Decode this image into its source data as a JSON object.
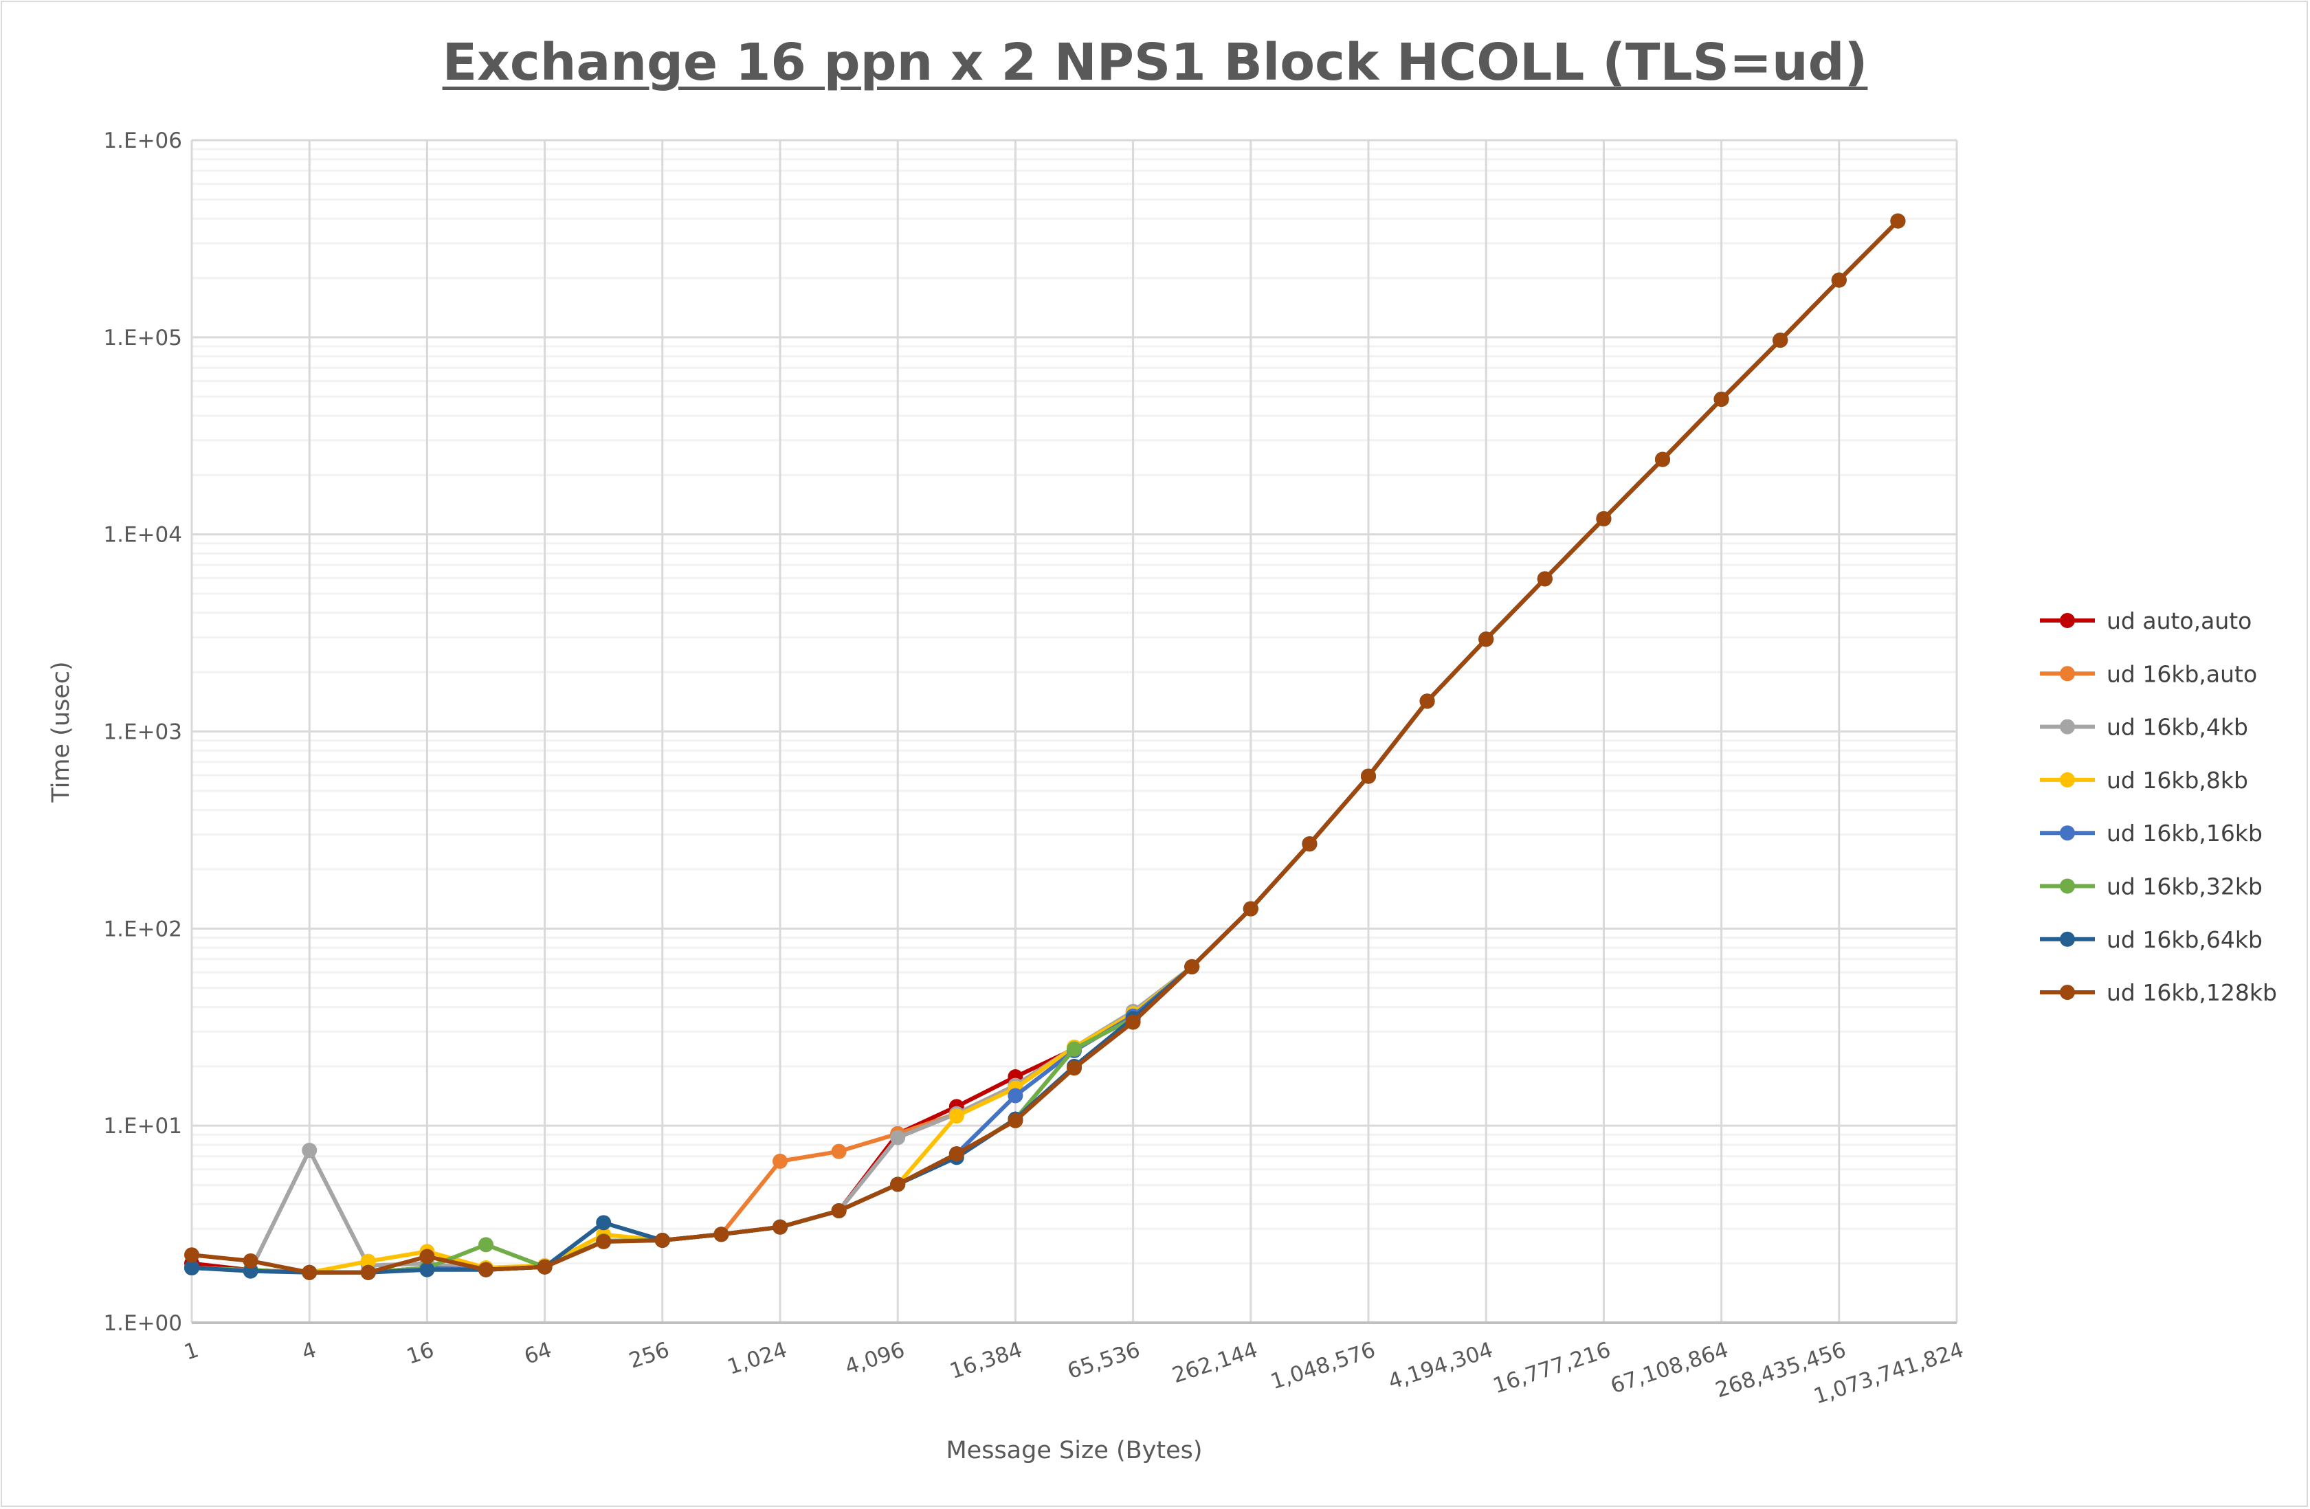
{
  "chart_data": {
    "type": "line",
    "title": "Exchange 16 ppn x 2 NPS1 Block HCOLL (TLS=ud)",
    "xlabel": "Message Size (Bytes)",
    "ylabel": "Time (usec)",
    "x_scale": "log2",
    "y_scale": "log10",
    "ylim": [
      1,
      1000000
    ],
    "xlim": [
      1,
      1073741824
    ],
    "grid": true,
    "legend_position": "right",
    "x_tick_labels": [
      "1",
      "4",
      "16",
      "64",
      "256",
      "1,024",
      "4,096",
      "16,384",
      "65,536",
      "262,144",
      "1,048,576",
      "4,194,304",
      "16,777,216",
      "67,108,864",
      "268,435,456",
      "1,073,741,824"
    ],
    "y_tick_labels": [
      "1.E+00",
      "1.E+01",
      "1.E+02",
      "1.E+03",
      "1.E+04",
      "1.E+05",
      "1.E+06"
    ],
    "x": [
      1,
      2,
      4,
      8,
      16,
      32,
      64,
      128,
      256,
      512,
      1024,
      2048,
      4096,
      8192,
      16384,
      32768,
      65536,
      131072,
      262144,
      524288,
      1048576,
      2097152,
      4194304,
      8388608,
      16777216,
      33554432,
      67108864,
      134217728,
      268435456,
      536870912
    ],
    "series": [
      {
        "name": "ud auto,auto",
        "color": "#C00000",
        "values": [
          2.0,
          1.85,
          1.8,
          1.8,
          1.9,
          1.86,
          1.92,
          2.6,
          2.62,
          2.81,
          3.06,
          3.7,
          9.1,
          12.5,
          17.7,
          24.5,
          36,
          64,
          126,
          269,
          593,
          1425,
          2940,
          5950,
          12000,
          24000,
          48500,
          96600,
          195000,
          389000
        ]
      },
      {
        "name": "ud 16kb,auto",
        "color": "#ED7D31",
        "values": [
          1.9,
          1.85,
          1.8,
          1.8,
          1.9,
          1.86,
          1.92,
          2.6,
          2.62,
          2.81,
          6.6,
          7.4,
          9.1,
          11.5,
          16,
          25,
          37,
          64,
          126,
          269,
          593,
          1425,
          2940,
          5950,
          12000,
          24000,
          48500,
          96600,
          195000,
          389000
        ]
      },
      {
        "name": "ud 16kb,4kb",
        "color": "#A5A5A5",
        "values": [
          1.9,
          1.85,
          7.5,
          1.95,
          2.0,
          1.86,
          1.92,
          2.6,
          2.62,
          2.81,
          3.06,
          3.7,
          8.7,
          11.5,
          16,
          25,
          38,
          64,
          126,
          269,
          593,
          1425,
          2940,
          5950,
          12000,
          24000,
          48500,
          96600,
          195000,
          389000
        ]
      },
      {
        "name": "ud 16kb,8kb",
        "color": "#FFC000",
        "values": [
          1.9,
          1.85,
          1.8,
          2.05,
          2.3,
          1.9,
          1.95,
          2.8,
          2.62,
          2.81,
          3.06,
          3.7,
          5.04,
          11.2,
          15.5,
          25,
          37,
          64,
          126,
          269,
          593,
          1425,
          2940,
          5950,
          12000,
          24000,
          48500,
          96600,
          195000,
          389000
        ]
      },
      {
        "name": "ud 16kb,16kb",
        "color": "#4472C4",
        "values": [
          1.9,
          1.85,
          1.8,
          1.8,
          1.9,
          1.86,
          1.92,
          2.6,
          2.62,
          2.81,
          3.06,
          3.7,
          5.04,
          7.2,
          14.2,
          24,
          36,
          64,
          126,
          269,
          593,
          1425,
          2940,
          5950,
          12000,
          24000,
          48500,
          96600,
          195000,
          389000
        ]
      },
      {
        "name": "ud 16kb,32kb",
        "color": "#70AD47",
        "values": [
          1.9,
          1.85,
          1.8,
          1.8,
          1.9,
          2.49,
          1.92,
          2.6,
          2.62,
          2.81,
          3.06,
          3.7,
          5.04,
          7.0,
          10.8,
          24.5,
          35,
          64,
          126,
          269,
          593,
          1425,
          2940,
          5950,
          12000,
          24000,
          48500,
          96600,
          195000,
          389000
        ]
      },
      {
        "name": "ud 16kb,64kb",
        "color": "#255E91",
        "values": [
          1.9,
          1.83,
          1.8,
          1.8,
          1.86,
          1.86,
          1.92,
          3.22,
          2.62,
          2.81,
          3.06,
          3.7,
          5.04,
          6.9,
          10.8,
          20,
          35,
          64,
          126,
          269,
          593,
          1425,
          2940,
          5950,
          12000,
          24000,
          48500,
          96600,
          195000,
          389000
        ]
      },
      {
        "name": "ud 16kb,128kb",
        "color": "#9E480E",
        "values": [
          2.21,
          2.06,
          1.8,
          1.8,
          2.17,
          1.86,
          1.92,
          2.58,
          2.62,
          2.81,
          3.06,
          3.7,
          5.04,
          7.2,
          10.6,
          19.6,
          33.5,
          64,
          126,
          269,
          593,
          1425,
          2940,
          5950,
          12000,
          24000,
          48500,
          96600,
          195000,
          389000
        ]
      }
    ]
  }
}
